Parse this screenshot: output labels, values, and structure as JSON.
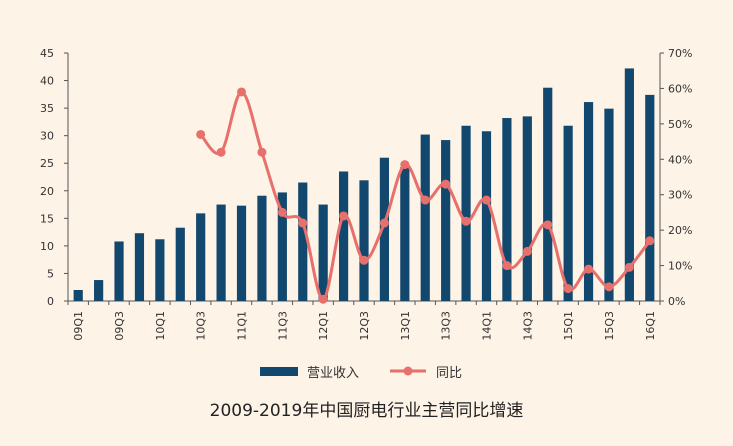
{
  "caption": "2009-2019年中国厨电行业主营同比增速",
  "colors": {
    "bar": "#12476e",
    "line": "#e8706c",
    "background": "#fdf3e6"
  },
  "chart_data": {
    "type": "bar",
    "title": "",
    "categories": [
      "09Q1",
      "09Q2",
      "09Q3",
      "09Q4",
      "10Q1",
      "10Q2",
      "10Q3",
      "10Q4",
      "11Q1",
      "11Q2",
      "11Q3",
      "11Q4",
      "12Q1",
      "12Q2",
      "12Q3",
      "12Q4",
      "13Q1",
      "13Q2",
      "13Q3",
      "13Q4",
      "14Q1",
      "14Q2",
      "14Q3",
      "14Q4",
      "15Q1",
      "15Q2",
      "15Q3",
      "15Q4",
      "16Q1"
    ],
    "tick_labels": [
      "09Q1",
      "09Q3",
      "10Q1",
      "10Q3",
      "11Q1",
      "11Q3",
      "12Q1",
      "12Q3",
      "13Q1",
      "13Q3",
      "14Q1",
      "14Q3",
      "15Q1",
      "15Q3",
      "16Q1"
    ],
    "series": [
      {
        "name": "营业收入",
        "type": "bar",
        "axis": "left",
        "values": [
          2.0,
          3.8,
          10.8,
          12.3,
          11.2,
          13.3,
          15.9,
          17.5,
          17.3,
          19.1,
          19.7,
          21.5,
          17.5,
          23.5,
          21.9,
          26.0,
          24.3,
          30.2,
          29.2,
          31.8,
          30.8,
          33.2,
          33.5,
          38.7,
          31.8,
          36.1,
          34.9,
          42.2,
          37.4
        ]
      },
      {
        "name": "同比",
        "type": "line",
        "axis": "right",
        "values": [
          null,
          null,
          null,
          null,
          null,
          null,
          0.47,
          0.42,
          0.59,
          0.42,
          0.25,
          0.22,
          0.005,
          0.24,
          0.115,
          0.22,
          0.385,
          0.285,
          0.33,
          0.225,
          0.285,
          0.1,
          0.14,
          0.215,
          0.035,
          0.09,
          0.04,
          0.095,
          0.17
        ]
      }
    ],
    "y_left": {
      "ylim": [
        0,
        45
      ],
      "ticks": [
        "0",
        "5",
        "10",
        "15",
        "20",
        "25",
        "30",
        "35",
        "40",
        "45"
      ]
    },
    "y_right": {
      "ylim": [
        0,
        0.7
      ],
      "ticks": [
        "0%",
        "10%",
        "20%",
        "30%",
        "40%",
        "50%",
        "60%",
        "70%"
      ]
    },
    "legend": {
      "position": "bottom",
      "entries": [
        "营业收入",
        "同比"
      ]
    },
    "grid": false
  }
}
